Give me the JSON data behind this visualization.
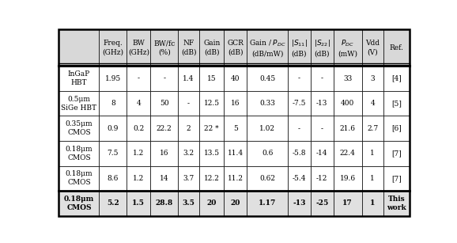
{
  "headers": [
    "",
    "Freq.\n(GHz)",
    "BW\n(GHz)",
    "BW/fc\n(%)",
    "NF\n(dB)",
    "Gain\n(dB)",
    "GCR\n(dB)",
    "Gain / P$_{DC}$\n(dB/mW)",
    "|S$_{11}$|\n(dB)",
    "|S$_{22}$|\n(dB)",
    "P$_{DC}$\n(mW)",
    "Vdd\n(V)",
    "Ref."
  ],
  "rows": [
    [
      "InGaP\nHBT",
      "1.95",
      "-",
      "-",
      "1.4",
      "15",
      "40",
      "0.45",
      "-",
      "-",
      "33",
      "3",
      "[4]"
    ],
    [
      "0.5μm\nSiGe HBT",
      "8",
      "4",
      "50",
      "-",
      "12.5",
      "16",
      "0.33",
      "-7.5",
      "-13",
      "400",
      "4",
      "[5]"
    ],
    [
      "0.35μm\nCMOS",
      "0.9",
      "0.2",
      "22.2",
      "2",
      "22 *",
      "5",
      "1.02",
      "-",
      "-",
      "21.6",
      "2.7",
      "[6]"
    ],
    [
      "0.18μm\nCMOS",
      "7.5",
      "1.2",
      "16",
      "3.2",
      "13.5",
      "11.4",
      "0.6",
      "-5.8",
      "-14",
      "22.4",
      "1",
      "[7]"
    ],
    [
      "0.18μm\nCMOS",
      "8.6",
      "1.2",
      "14",
      "3.7",
      "12.2",
      "11.2",
      "0.62",
      "-5.4",
      "-12",
      "19.6",
      "1",
      "[7]"
    ],
    [
      "0.18μm\nCMOS",
      "5.2",
      "1.5",
      "28.8",
      "3.5",
      "20",
      "20",
      "1.17",
      "-13",
      "-25",
      "17",
      "1",
      "This\nwork"
    ]
  ],
  "col_widths_rel": [
    1.1,
    0.75,
    0.65,
    0.75,
    0.58,
    0.68,
    0.62,
    1.12,
    0.62,
    0.62,
    0.78,
    0.58,
    0.72
  ],
  "fig_width": 5.78,
  "fig_height": 3.07,
  "header_bg": "#d8d8d8",
  "last_row_bg": "#e0e0e0",
  "normal_bg": "white",
  "border_color": "black",
  "header_fontsize": 6.5,
  "data_fontsize": 6.5
}
